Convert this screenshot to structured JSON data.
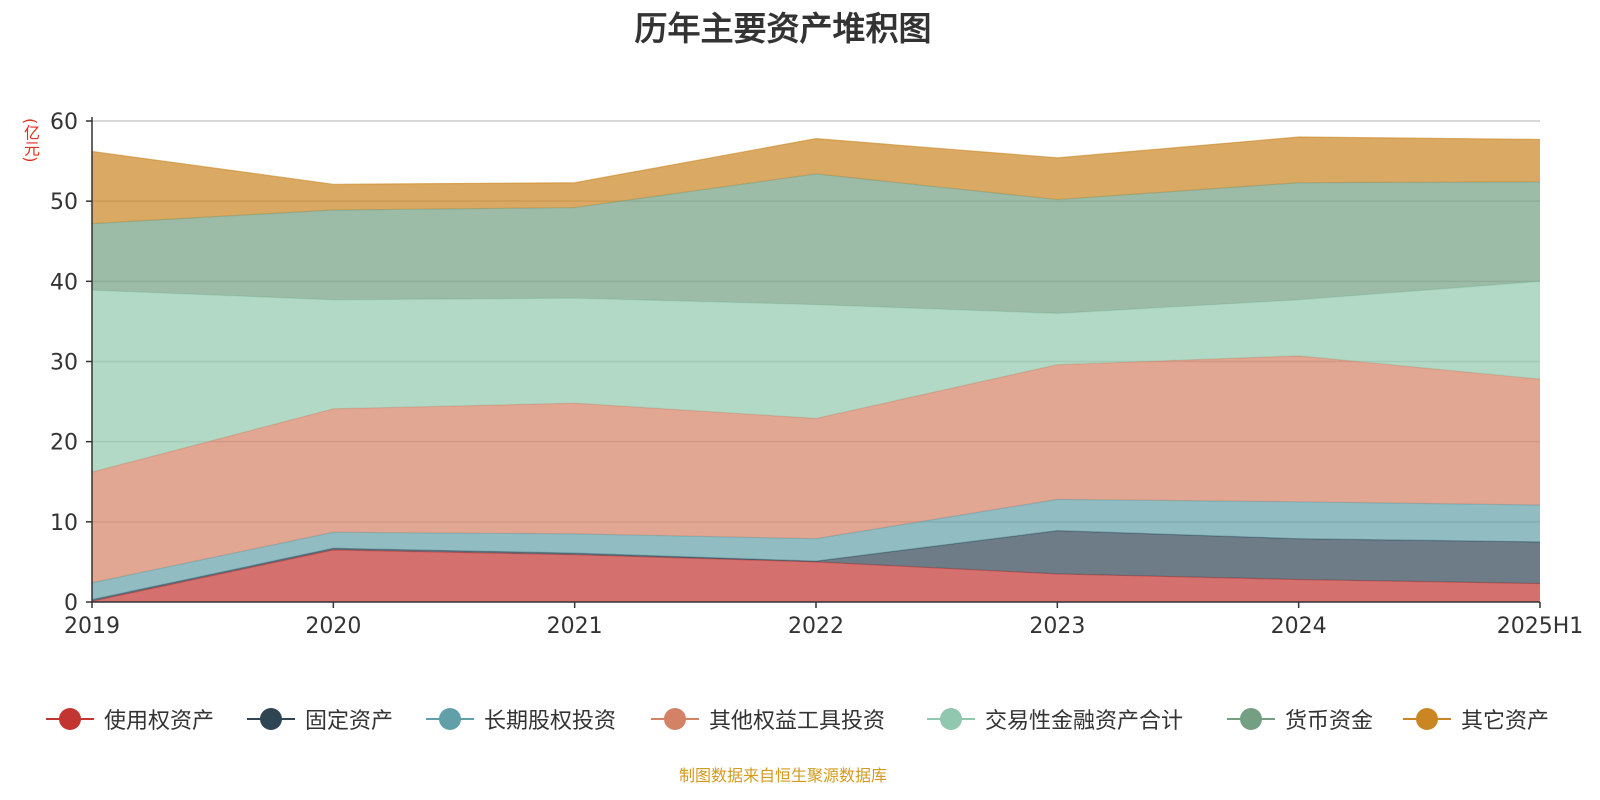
{
  "title": "历年主要资产堆积图",
  "unit_label": "(亿元)",
  "source": "制图数据来自恒生聚源数据库",
  "chart_data": {
    "type": "area",
    "stacked": true,
    "x": [
      "2019",
      "2020",
      "2021",
      "2022",
      "2023",
      "2024",
      "2025H1"
    ],
    "ylim": [
      0,
      60
    ],
    "yticks": [
      0,
      10,
      20,
      30,
      40,
      50,
      60
    ],
    "grid": true,
    "legend_position": "bottom",
    "series": [
      {
        "name": "使用权资产",
        "color": "#c23531",
        "values": [
          0.1,
          6.5,
          5.9,
          5.0,
          3.5,
          2.8,
          2.3
        ]
      },
      {
        "name": "固定资产",
        "color": "#2f4554",
        "values": [
          0.2,
          0.2,
          0.2,
          0.1,
          5.4,
          5.1,
          5.2
        ]
      },
      {
        "name": "长期股权投资",
        "color": "#61a0a8",
        "values": [
          2.1,
          2.0,
          2.4,
          2.8,
          3.9,
          4.6,
          4.6
        ]
      },
      {
        "name": "其他权益工具投资",
        "color": "#d48265",
        "values": [
          13.8,
          15.4,
          16.3,
          15.0,
          16.8,
          18.2,
          15.7
        ]
      },
      {
        "name": "交易性金融资产合计",
        "color": "#91c7ae",
        "values": [
          22.7,
          13.6,
          13.1,
          14.2,
          6.4,
          7.0,
          12.2
        ]
      },
      {
        "name": "货币资金",
        "color": "#749f83",
        "values": [
          8.3,
          11.2,
          11.3,
          16.3,
          14.2,
          14.6,
          12.4
        ]
      },
      {
        "name": "其它资产",
        "color": "#ca8622",
        "values": [
          9.0,
          3.2,
          3.1,
          4.4,
          5.2,
          5.7,
          5.3
        ]
      }
    ]
  }
}
